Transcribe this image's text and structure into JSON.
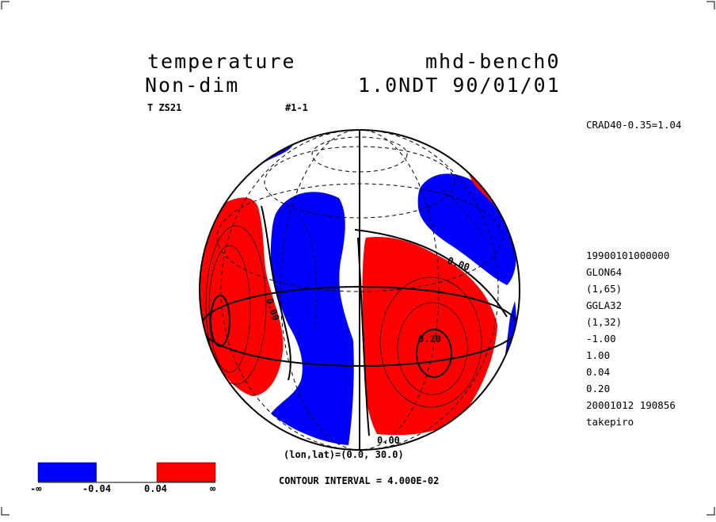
{
  "header": {
    "variable": "temperature",
    "experiment": "mhd-bench0",
    "units": "Non-dim",
    "time": "1.0NDT 90/01/01",
    "field_code": "T ZS21",
    "frame_id": "#1-1"
  },
  "side_info": {
    "crad": "CRAD40-0.35=1.04",
    "lines": [
      "19900101000000",
      "GLON64",
      "(1,65)",
      "GGLA32",
      "(1,32)",
      "-1.00",
      "1.00",
      "0.04",
      "0.20",
      "20001012 190856",
      "takepiro"
    ]
  },
  "projection_label": "(lon,lat)=(0.0, 30.0)",
  "contour_interval": "CONTOUR INTERVAL = 4.000E-02",
  "chart_data": {
    "type": "contour",
    "projection": "orthographic",
    "view_center": {
      "lon": 0.0,
      "lat": 30.0
    },
    "contour_interval": 0.04,
    "contour_labels": [
      "0.00",
      "0.00",
      "0.20",
      "0.00"
    ],
    "legend": {
      "colors": {
        "negative": "#0000ff",
        "neutral": "#ffffff",
        "positive": "#ff0000"
      },
      "tick_labels": [
        "-∞",
        "-0.04",
        "0.04",
        "∞"
      ]
    }
  }
}
